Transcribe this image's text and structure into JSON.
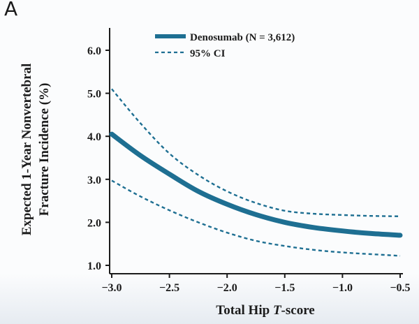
{
  "panel_label": "A",
  "chart_data": {
    "type": "line",
    "x_label": "Total Hip T-score",
    "x_label_prefix": "Total Hip ",
    "x_label_italic": "T",
    "x_label_suffix": "-score",
    "y_label_line1": "Expected 1-Year Nonvertebral",
    "y_label_line2": "Fracture Incidence (%)",
    "xlim": [
      -3.0,
      -0.5
    ],
    "ylim": [
      1.0,
      6.5
    ],
    "x_ticks": [
      -3.0,
      -2.5,
      -2.0,
      -1.5,
      -1.0,
      -0.5
    ],
    "x_tick_labels": [
      "−3.0",
      "−2.5",
      "−2.0",
      "−1.5",
      "−1.0",
      "−0.5"
    ],
    "y_ticks": [
      1.0,
      2.0,
      3.0,
      4.0,
      5.0,
      6.0
    ],
    "y_tick_labels": [
      "1.0",
      "2.0",
      "3.0",
      "4.0",
      "5.0",
      "6.0"
    ],
    "grid": false,
    "legend_position": "top-right",
    "series": [
      {
        "name": "Denosumab (N = 3,612)",
        "style": "solid",
        "color": "#1e6f92",
        "x": [
          -3.0,
          -2.75,
          -2.5,
          -2.25,
          -2.0,
          -1.75,
          -1.5,
          -1.25,
          -1.0,
          -0.75,
          -0.5
        ],
        "y": [
          4.05,
          3.55,
          3.12,
          2.72,
          2.42,
          2.18,
          2.0,
          1.88,
          1.8,
          1.74,
          1.7
        ]
      },
      {
        "name": "95% CI",
        "style": "dashed",
        "color": "#1e6f92",
        "x": [
          -3.0,
          -2.75,
          -2.5,
          -2.25,
          -2.0,
          -1.75,
          -1.5,
          -1.25,
          -1.0,
          -0.75,
          -0.5
        ],
        "y": [
          5.1,
          4.3,
          3.6,
          3.1,
          2.72,
          2.45,
          2.27,
          2.2,
          2.17,
          2.15,
          2.14
        ]
      },
      {
        "name": "95% CI",
        "style": "dashed",
        "color": "#1e6f92",
        "show_in_legend": false,
        "x": [
          -3.0,
          -2.75,
          -2.5,
          -2.25,
          -2.0,
          -1.75,
          -1.5,
          -1.25,
          -1.0,
          -0.75,
          -0.5
        ],
        "y": [
          2.97,
          2.6,
          2.28,
          2.0,
          1.76,
          1.57,
          1.45,
          1.36,
          1.3,
          1.26,
          1.22
        ]
      }
    ]
  }
}
